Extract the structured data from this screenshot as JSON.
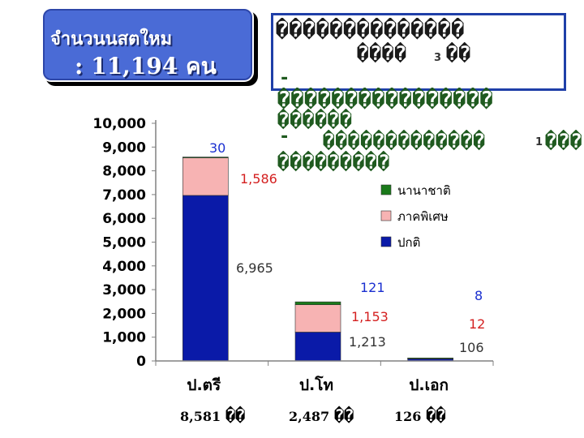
{
  "header": {
    "title": "จำนวนนสตใหม",
    "total_line": ": 11,194 คน"
  },
  "note": {
    "line1": "��������������",
    "line2_a": "����",
    "line2_digit": "3",
    "line2_b": "��",
    "line3": "-",
    "line4": "����������������",
    "line5": "������",
    "line6_a": "-",
    "line6_b": "�������������",
    "line6_digit": "1",
    "line6_c": "���",
    "line7": "���������"
  },
  "colors": {
    "normal": "#0a1aa8",
    "special": "#f7b3b3",
    "international": "#1a7a1a",
    "note_border": "#1f3fa8"
  },
  "chart_data": {
    "type": "bar",
    "stacked": true,
    "categories": [
      "ป.ตรี",
      "ป.โท",
      "ป.เอก"
    ],
    "series": [
      {
        "name": "ปกติ",
        "values": [
          6965,
          1213,
          106
        ],
        "labels": [
          "6,965",
          "1,213",
          "106"
        ]
      },
      {
        "name": "ภาคพิเศษ",
        "values": [
          1586,
          1153,
          12
        ],
        "labels": [
          "1,586",
          "1,153",
          "12"
        ]
      },
      {
        "name": "นานาชาติ",
        "values": [
          30,
          121,
          8
        ],
        "labels": [
          "30",
          "121",
          "8"
        ]
      }
    ],
    "yticks": [
      "0",
      "1,000",
      "2,000",
      "3,000",
      "4,000",
      "5,000",
      "6,000",
      "7,000",
      "8,000",
      "9,000",
      "10,000"
    ],
    "ylim": [
      0,
      10000
    ],
    "grid": false,
    "legend_position": "right"
  },
  "totals": [
    {
      "value": "8,581",
      "suffix": "��"
    },
    {
      "value": "2,487",
      "suffix": "��"
    },
    {
      "value": "126",
      "suffix": "��"
    }
  ]
}
